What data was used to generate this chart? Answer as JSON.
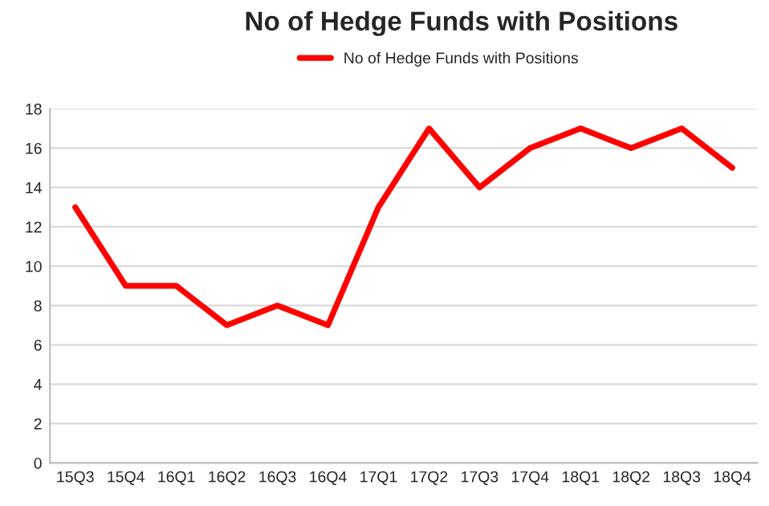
{
  "chart_data": {
    "type": "line",
    "title": "No of Hedge Funds with Positions",
    "categories": [
      "15Q3",
      "15Q4",
      "16Q1",
      "16Q2",
      "16Q3",
      "16Q4",
      "17Q1",
      "17Q2",
      "17Q3",
      "17Q4",
      "18Q1",
      "18Q2",
      "18Q3",
      "18Q4"
    ],
    "series": [
      {
        "name": "No of Hedge Funds with Positions",
        "color": "#ff0000",
        "values": [
          13,
          9,
          9,
          7,
          8,
          7,
          13,
          17,
          14,
          16,
          17,
          16,
          17,
          15
        ]
      }
    ],
    "ylim": [
      0,
      18
    ],
    "yticks": [
      0,
      2,
      4,
      6,
      8,
      10,
      12,
      14,
      16,
      18
    ],
    "grid": "y",
    "legend": "top",
    "marker": "none",
    "line_style": "solid"
  }
}
